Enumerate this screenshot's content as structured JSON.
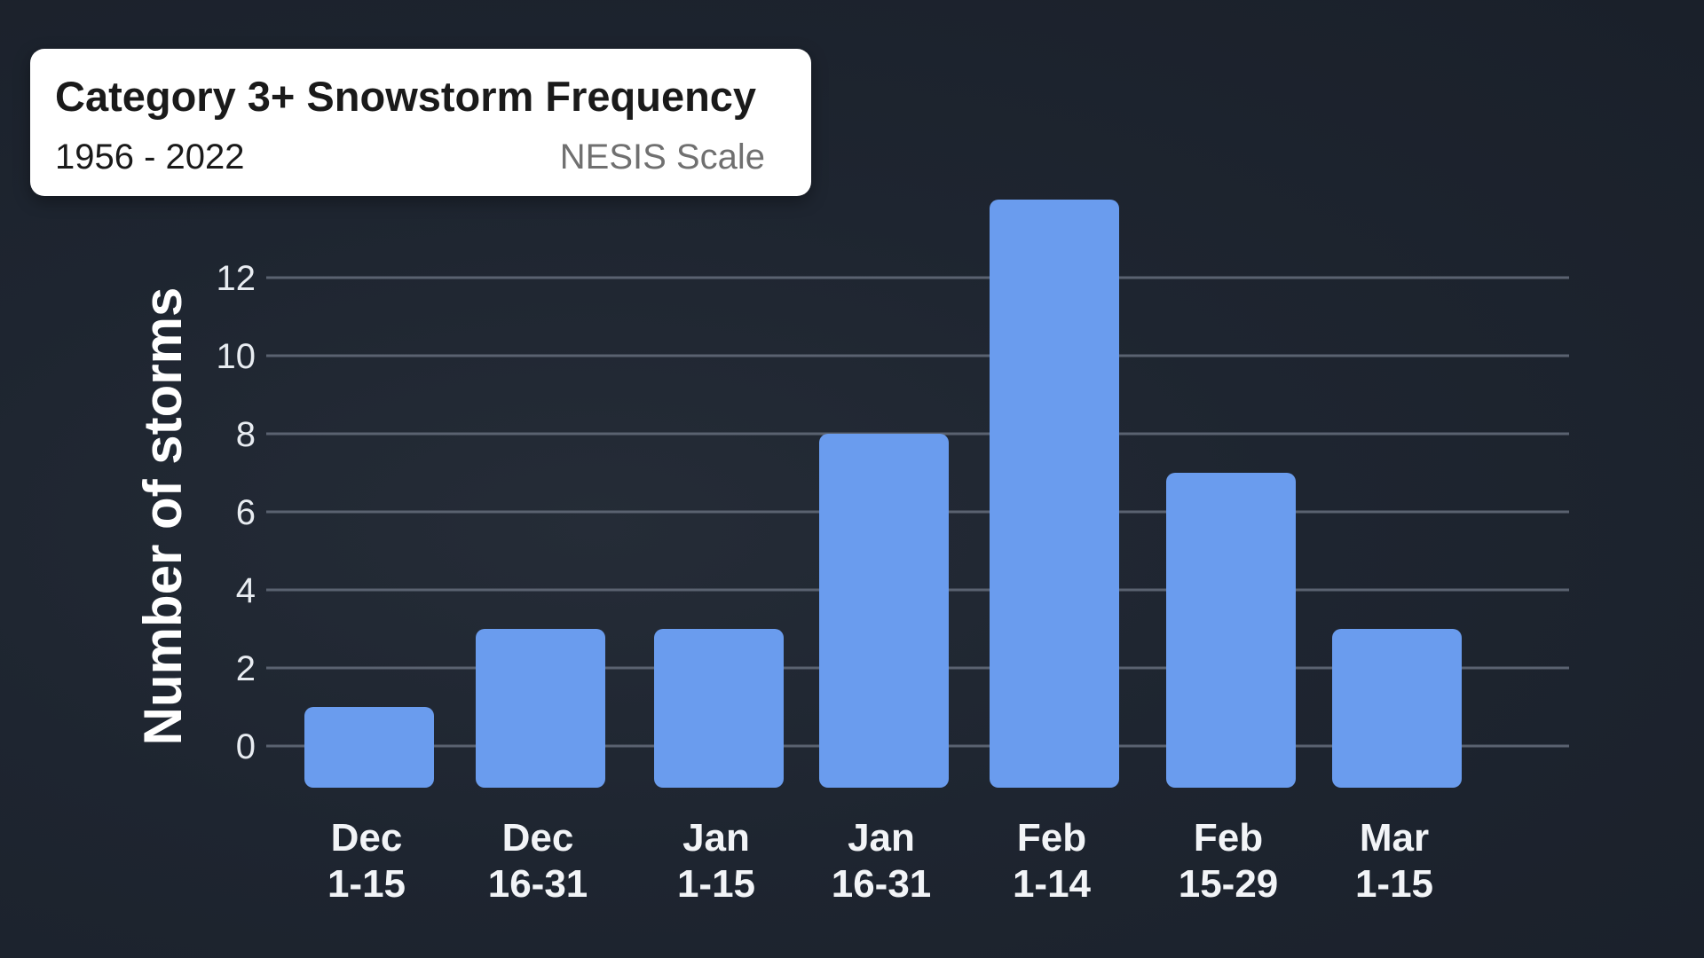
{
  "header": {
    "title": "Category 3+ Snowstorm Frequency",
    "period": "1956 - 2022",
    "scale": "NESIS Scale"
  },
  "colors": {
    "bar": "#6a9cee",
    "grid": "#5a6270",
    "text": "#e8ecf1"
  },
  "chart_data": {
    "type": "bar",
    "categories": [
      [
        "Dec",
        "1-15"
      ],
      [
        "Dec",
        "16-31"
      ],
      [
        "Jan",
        "1-15"
      ],
      [
        "Jan",
        "16-31"
      ],
      [
        "Feb",
        "1-14"
      ],
      [
        "Feb",
        "15-29"
      ],
      [
        "Mar",
        "1-15"
      ]
    ],
    "values": [
      1,
      3,
      3,
      8,
      14,
      7,
      3
    ],
    "ylabel": "Number of storms",
    "yticks": [
      0,
      2,
      4,
      6,
      8,
      10,
      12
    ],
    "grid": true,
    "legend": "none"
  }
}
